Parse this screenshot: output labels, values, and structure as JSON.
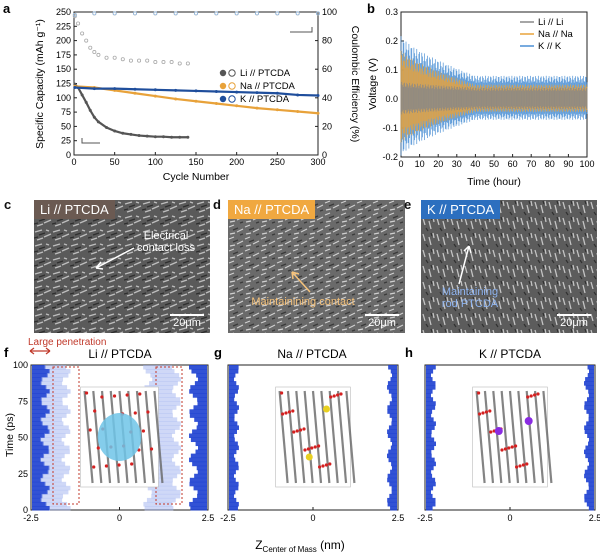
{
  "panels": {
    "a": {
      "letter": "a",
      "chart_data": {
        "type": "scatter",
        "xlabel": "Cycle Number",
        "ylabel_left": "Specific Capacity (mAh g⁻¹)",
        "ylabel_right": "Coulombic Efficiency (%)",
        "xlim": [
          0,
          300
        ],
        "ylim_left": [
          0,
          250
        ],
        "ylim_right": [
          0,
          100
        ],
        "xticks": [
          "0",
          "50",
          "100",
          "150",
          "200",
          "250",
          "300"
        ],
        "yticks_left": [
          "0",
          "25",
          "50",
          "75",
          "100",
          "125",
          "150",
          "175",
          "200",
          "225",
          "250"
        ],
        "yticks_right": [
          "0",
          "20",
          "40",
          "60",
          "80",
          "100"
        ],
        "legend": [
          "Li // PTCDA",
          "Na // PTCDA",
          "K // PTCDA"
        ],
        "series": [
          {
            "name": "Li // PTCDA",
            "color": "#555555",
            "x": [
              1,
              5,
              10,
              15,
              20,
              25,
              30,
              40,
              50,
              60,
              70,
              80,
              90,
              100,
              110,
              120,
              130,
              140
            ],
            "capacity": [
              124,
              118,
              105,
              92,
              78,
              66,
              58,
              48,
              42,
              38,
              36,
              34,
              33,
              32,
              32,
              31,
              31,
              31
            ],
            "ce": [
              97,
              92,
              85,
              80,
              75,
              72,
              70,
              68,
              68,
              67,
              66,
              66,
              66,
              65,
              65,
              65,
              64,
              64
            ]
          },
          {
            "name": "Na // PTCDA",
            "color": "#e8a23a",
            "x": [
              1,
              25,
              50,
              75,
              100,
              125,
              150,
              175,
              200,
              225,
              250,
              275,
              300
            ],
            "capacity": [
              120,
              118,
              113,
              108,
              103,
              98,
              94,
              90,
              86,
              82,
              79,
              76,
              73
            ],
            "ce": [
              98,
              99,
              99,
              99,
              99,
              99,
              99,
              99,
              99,
              99,
              99,
              99,
              99
            ]
          },
          {
            "name": "K // PTCDA",
            "color": "#1f4e9c",
            "x": [
              1,
              25,
              50,
              75,
              100,
              125,
              150,
              175,
              200,
              225,
              250,
              275,
              300
            ],
            "capacity": [
              118,
              116,
              116,
              115,
              114,
              113,
              112,
              111,
              110,
              109,
              108,
              105,
              104
            ],
            "ce": [
              98,
              99,
              99,
              99,
              99,
              99,
              99,
              99,
              99,
              99,
              99,
              99,
              99
            ]
          }
        ]
      }
    },
    "b": {
      "letter": "b",
      "chart_data": {
        "type": "line",
        "xlabel": "Time (hour)",
        "ylabel": "Voltage (V)",
        "xlim": [
          0,
          100
        ],
        "ylim": [
          -0.2,
          0.3
        ],
        "xticks": [
          "0",
          "10",
          "20",
          "30",
          "40",
          "50",
          "60",
          "70",
          "80",
          "90",
          "100"
        ],
        "yticks": [
          "-0.2",
          "-0.1",
          "0.0",
          "0.1",
          "0.2",
          "0.3"
        ],
        "legend": [
          "Li // Li",
          "Na // Na",
          "K // K"
        ],
        "series": [
          {
            "name": "Li // Li",
            "color": "#888888",
            "amplitude_start": 0.06,
            "amplitude_end": 0.04
          },
          {
            "name": "Na // Na",
            "color": "#e8a23a",
            "amplitude_start": 0.17,
            "amplitude_end": 0.05
          },
          {
            "name": "K // K",
            "color": "#4a8fd4",
            "amplitude_start": 0.22,
            "amplitude_end": 0.08
          }
        ]
      }
    },
    "c": {
      "letter": "c",
      "tag": "Li // PTCDA",
      "annotation": "Electrical contact loss",
      "scale": "20μm"
    },
    "d": {
      "letter": "d",
      "tag": "Na // PTCDA",
      "annotation": "Maintainining contact",
      "scale": "20μm"
    },
    "e": {
      "letter": "e",
      "tag": "K // PTCDA",
      "annotation": "Maintaining rod PTCDA",
      "scale": "20μm"
    },
    "f": {
      "letter": "f",
      "title": "Li // PTCDA",
      "annotation": "Large penetration"
    },
    "g": {
      "letter": "g",
      "title": "Na // PTCDA"
    },
    "h": {
      "letter": "h",
      "title": "K // PTCDA"
    },
    "md": {
      "ylabel": "Time (ps)",
      "xlabel_main": "Z",
      "xlabel_sub": "Center of Mass",
      "xlabel_unit": " (nm)",
      "yticks": [
        "0",
        "25",
        "50",
        "75",
        "100"
      ],
      "xticks": [
        "-2.5",
        "0",
        "2.5"
      ]
    }
  },
  "colors": {
    "li_tag": "#6b5a52",
    "na_tag": "#f0a840",
    "k_tag": "#2c6fbf",
    "md_blue": "#1c3fd0",
    "highlight_red": "#c0392b"
  }
}
